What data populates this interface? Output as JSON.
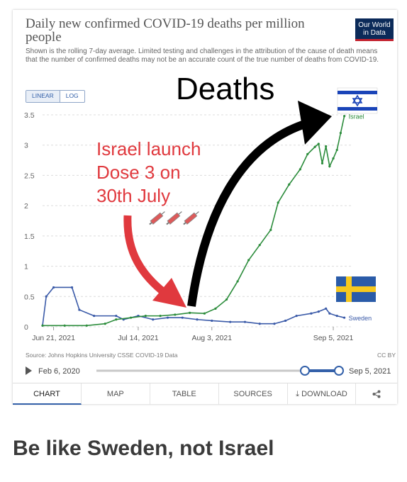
{
  "header": {
    "title": "Daily new confirmed COVID-19 deaths per million people",
    "subtitle": "Shown is the rolling 7-day average. Limited testing and challenges in the attribution of the cause of death means that the number of confirmed deaths may not be an accurate count of the true number of deaths from COVID-19.",
    "logo_line1": "Our World",
    "logo_line2": "in Data"
  },
  "scale": {
    "linear": "LINEAR",
    "log": "LOG",
    "selected": "linear"
  },
  "source": "Source: Johns Hopkins University CSSE COVID-19 Data",
  "license": "CC BY",
  "timeline": {
    "start_label": "Feb 6, 2020",
    "end_label": "Sep 5, 2021"
  },
  "tabs": [
    {
      "label": "CHART",
      "active": true
    },
    {
      "label": "MAP"
    },
    {
      "label": "TABLE"
    },
    {
      "label": "SOURCES"
    },
    {
      "label": "DOWNLOAD",
      "icon": "download-icon"
    },
    {
      "label": "",
      "icon": "share-icon"
    }
  ],
  "overlay": {
    "annotation_line1": "Israel launch",
    "annotation_line2": "Dose 3 on",
    "annotation_line3": "30th July",
    "deaths_label": "Deaths"
  },
  "caption": "Be like Sweden, not Israel",
  "colors": {
    "israel": "#2b8c3b",
    "sweden": "#3a5aa8",
    "red_arrow": "#e0393e",
    "black_arrow": "#000000"
  },
  "chart_data": {
    "type": "line",
    "x_ticks": [
      "Jun 21, 2021",
      "Jul 14, 2021",
      "Aug 3, 2021",
      "Sep 5, 2021"
    ],
    "y_ticks": [
      0,
      0.5,
      1,
      1.5,
      2,
      2.5,
      3,
      3.5
    ],
    "ylim": [
      0,
      3.5
    ],
    "xlim": [
      "2021-06-18",
      "2021-09-10"
    ],
    "grid": true,
    "series": [
      {
        "name": "Israel",
        "points": [
          [
            "2021-06-18",
            0.02
          ],
          [
            "2021-06-24",
            0.02
          ],
          [
            "2021-06-30",
            0.02
          ],
          [
            "2021-07-05",
            0.05
          ],
          [
            "2021-07-08",
            0.12
          ],
          [
            "2021-07-12",
            0.15
          ],
          [
            "2021-07-16",
            0.18
          ],
          [
            "2021-07-20",
            0.18
          ],
          [
            "2021-07-24",
            0.2
          ],
          [
            "2021-07-28",
            0.23
          ],
          [
            "2021-08-01",
            0.22
          ],
          [
            "2021-08-04",
            0.3
          ],
          [
            "2021-08-07",
            0.45
          ],
          [
            "2021-08-10",
            0.75
          ],
          [
            "2021-08-13",
            1.1
          ],
          [
            "2021-08-16",
            1.35
          ],
          [
            "2021-08-19",
            1.6
          ],
          [
            "2021-08-21",
            2.05
          ],
          [
            "2021-08-24",
            2.35
          ],
          [
            "2021-08-27",
            2.6
          ],
          [
            "2021-08-29",
            2.85
          ],
          [
            "2021-08-31",
            2.97
          ],
          [
            "2021-09-01",
            3.02
          ],
          [
            "2021-09-02",
            2.7
          ],
          [
            "2021-09-03",
            2.98
          ],
          [
            "2021-09-04",
            2.65
          ],
          [
            "2021-09-05",
            2.78
          ],
          [
            "2021-09-06",
            2.92
          ],
          [
            "2021-09-07",
            3.2
          ],
          [
            "2021-09-08",
            3.48
          ]
        ]
      },
      {
        "name": "Sweden",
        "points": [
          [
            "2021-06-18",
            0.02
          ],
          [
            "2021-06-19",
            0.5
          ],
          [
            "2021-06-21",
            0.65
          ],
          [
            "2021-06-26",
            0.65
          ],
          [
            "2021-06-28",
            0.28
          ],
          [
            "2021-07-02",
            0.18
          ],
          [
            "2021-07-08",
            0.18
          ],
          [
            "2021-07-10",
            0.12
          ],
          [
            "2021-07-14",
            0.18
          ],
          [
            "2021-07-18",
            0.12
          ],
          [
            "2021-07-22",
            0.15
          ],
          [
            "2021-07-26",
            0.15
          ],
          [
            "2021-07-30",
            0.12
          ],
          [
            "2021-08-03",
            0.1
          ],
          [
            "2021-08-08",
            0.08
          ],
          [
            "2021-08-12",
            0.08
          ],
          [
            "2021-08-16",
            0.05
          ],
          [
            "2021-08-20",
            0.05
          ],
          [
            "2021-08-23",
            0.1
          ],
          [
            "2021-08-26",
            0.18
          ],
          [
            "2021-08-30",
            0.22
          ],
          [
            "2021-09-01",
            0.25
          ],
          [
            "2021-09-03",
            0.3
          ],
          [
            "2021-09-04",
            0.22
          ],
          [
            "2021-09-06",
            0.18
          ],
          [
            "2021-09-08",
            0.15
          ]
        ]
      }
    ]
  }
}
